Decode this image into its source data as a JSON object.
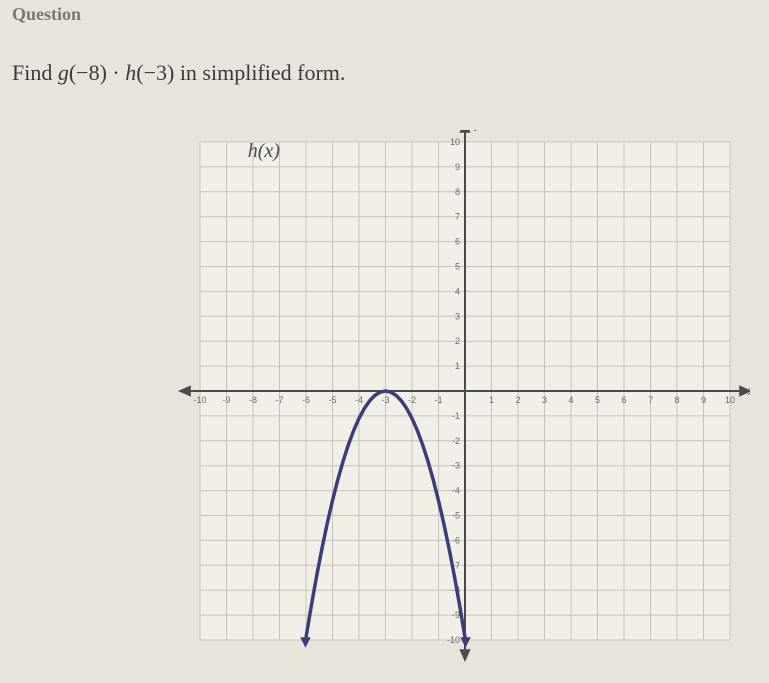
{
  "header": {
    "title": "Question"
  },
  "prompt": {
    "prefix": "Find ",
    "expr_g": "g",
    "arg_g": "(−8)",
    "dot": " · ",
    "expr_h": "h",
    "arg_h": "(−3)",
    "suffix": " in simplified form."
  },
  "chart": {
    "function_label": "h(x)",
    "axis_x_label": "x",
    "axis_y_label": "y",
    "type": "line",
    "xlim": [
      -10,
      10
    ],
    "ylim": [
      -10,
      10
    ],
    "xtick_step": 1,
    "ytick_step": 1,
    "x_tick_labels": [
      "-10",
      "-9",
      "-8",
      "-7",
      "-6",
      "-5",
      "-4",
      "-3",
      "-2",
      "-1",
      "1",
      "2",
      "3",
      "4",
      "5",
      "6",
      "7",
      "8",
      "9",
      "10"
    ],
    "y_tick_labels_pos": [
      "1",
      "2",
      "3",
      "4",
      "5",
      "6",
      "7",
      "8",
      "9",
      "10"
    ],
    "y_tick_labels_neg": [
      "-1",
      "-2",
      "-3",
      "-4",
      "-5",
      "-6",
      "-7",
      "-8",
      "-9",
      "-10"
    ],
    "grid_color": "#c8c4bc",
    "axis_color": "#4a4a4a",
    "background_color": "#f2efe8",
    "curve_color": "#3b3d7a",
    "curve_width": 3.5,
    "tick_font_size": 9,
    "label_fontsize": 14,
    "parabola": {
      "vertex_x": -3,
      "vertex_y": 0,
      "a": -1.1,
      "x_points": [
        -6.02,
        -5.8,
        -5.6,
        -5.4,
        -5.2,
        -5.0,
        -4.8,
        -4.6,
        -4.4,
        -4.2,
        -4.0,
        -3.8,
        -3.6,
        -3.4,
        -3.2,
        -3.0,
        -2.8,
        -2.6,
        -2.4,
        -2.2,
        -2.0,
        -1.8,
        -1.6,
        -1.4,
        -1.2,
        -1.0,
        -0.8,
        -0.6,
        -0.4,
        -0.2,
        0.02
      ]
    }
  }
}
